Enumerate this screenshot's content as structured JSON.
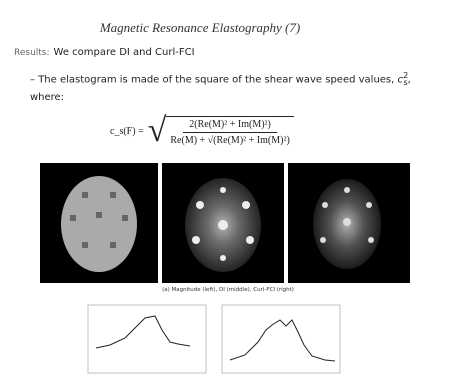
{
  "slide": {
    "title": "Magnetic Resonance Elastography (7)",
    "results_label": "Results:",
    "results_text": "We compare DI and Curl-FCI",
    "bullet_text": "The elastogram is made of the square of the shear wave speed values,",
    "bullet_symbol": "c",
    "bullet_symbol_sub": "s",
    "bullet_symbol_sup": "2",
    "bullet_end": ", where:",
    "formula_lhs": "c_s(F) =",
    "formula_numerator": "2(Re(M)² + Im(M)²)",
    "formula_denominator": "Re(M) + √(Re(M)² + Im(M)²)",
    "caption": "(a) Magnitude (left), DI (middle), Curl-FCI (right)"
  }
}
